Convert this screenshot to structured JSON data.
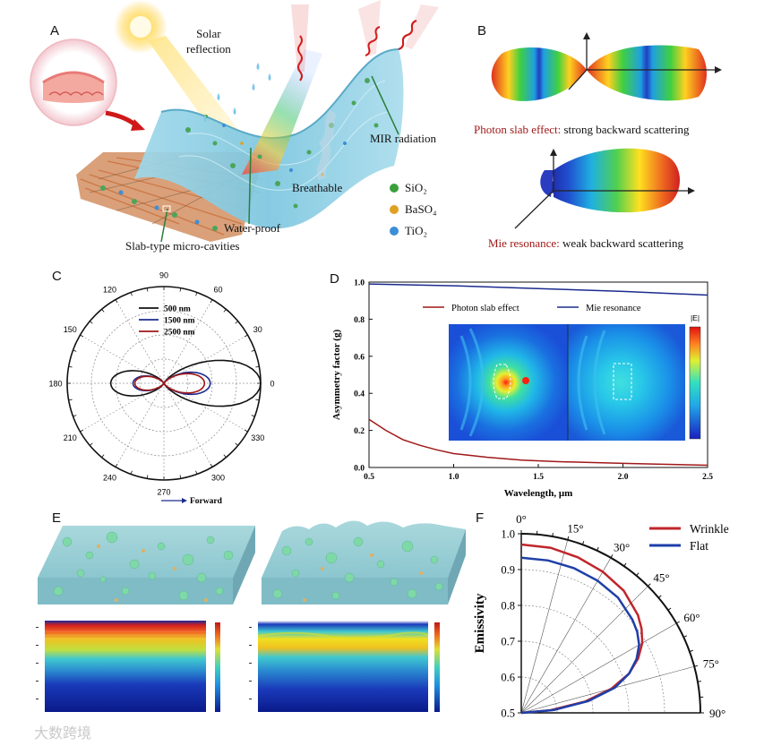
{
  "panels": {
    "a": "A",
    "b": "B",
    "c": "C",
    "d": "D",
    "e": "E",
    "f": "F"
  },
  "panel_a": {
    "solar": [
      "Solar",
      "reflection"
    ],
    "mir": "MIR radiation",
    "breathable": "Breathable",
    "waterproof": "Water-proof",
    "slab": "Slab-type micro-cavities",
    "legend": [
      {
        "label": "SiO₂",
        "color": "#3aa03a"
      },
      {
        "label": "BaSO₄",
        "color": "#e0a020"
      },
      {
        "label": "TiO₂",
        "color": "#3b8fd6"
      }
    ]
  },
  "panel_b": {
    "photon_name": "Photon slab effect:",
    "photon_desc": " strong backward scattering",
    "mie_name": "Mie resonance:",
    "mie_desc": " weak backward scattering"
  },
  "chart_data": [
    {
      "id": "C",
      "type": "polar",
      "angle_ticks": [
        "0",
        "30",
        "60",
        "90",
        "120",
        "150",
        "180",
        "210",
        "240",
        "270",
        "300",
        "330"
      ],
      "series": [
        {
          "name": "500   nm",
          "color": "#111111",
          "forward_lobe": 1.0,
          "backward_lobe": 0.55
        },
        {
          "name": "1500 nm",
          "color": "#1c2b8f",
          "forward_lobe": 0.48,
          "backward_lobe": 0.32
        },
        {
          "name": "2500 nm",
          "color": "#a01818",
          "forward_lobe": 0.42,
          "backward_lobe": 0.3
        }
      ],
      "annotation": "Forward"
    },
    {
      "id": "D",
      "type": "line",
      "xlabel": "Wavelength, μm",
      "ylabel": "Asymmetry factor (g)",
      "xlim": [
        0.5,
        2.5
      ],
      "ylim": [
        0.0,
        1.0
      ],
      "xticks": [
        "0.5",
        "1.0",
        "1.5",
        "2.0",
        "2.5"
      ],
      "yticks": [
        "0.0",
        "0.2",
        "0.4",
        "0.6",
        "0.8",
        "1.0"
      ],
      "inset_label": "|E|",
      "series": [
        {
          "name": "Photon slab effect",
          "color": "#a01818",
          "x": [
            0.5,
            0.6,
            0.7,
            0.8,
            0.9,
            1.0,
            1.2,
            1.4,
            1.6,
            1.8,
            2.0,
            2.2,
            2.5
          ],
          "y": [
            0.26,
            0.2,
            0.15,
            0.12,
            0.095,
            0.075,
            0.055,
            0.04,
            0.032,
            0.027,
            0.022,
            0.018,
            0.012
          ]
        },
        {
          "name": "Mie resonance",
          "color": "#1c2b8f",
          "x": [
            0.5,
            1.0,
            1.5,
            2.0,
            2.5
          ],
          "y": [
            0.99,
            0.98,
            0.965,
            0.95,
            0.93
          ]
        }
      ]
    },
    {
      "id": "F",
      "type": "polar",
      "ylabel": "Emissivity",
      "rlim": [
        0.5,
        1.0
      ],
      "rticks": [
        "0.5",
        "0.6",
        "0.7",
        "0.8",
        "0.9",
        "1.0"
      ],
      "angle_ticks": [
        "0°",
        "15°",
        "30°",
        "45°",
        "60°",
        "75°",
        "90°"
      ],
      "series": [
        {
          "name": "Wrinkle",
          "color": "#c0262b",
          "angles": [
            0,
            10,
            20,
            30,
            40,
            50,
            55,
            60,
            65,
            70,
            75,
            80,
            85,
            90
          ],
          "r": [
            0.97,
            0.968,
            0.962,
            0.955,
            0.945,
            0.925,
            0.91,
            0.89,
            0.86,
            0.82,
            0.76,
            0.68,
            0.58,
            0.5
          ]
        },
        {
          "name": "Flat",
          "color": "#1e3fa8",
          "angles": [
            0,
            10,
            20,
            30,
            40,
            50,
            55,
            60,
            65,
            70,
            75,
            80,
            85,
            90
          ],
          "r": [
            0.933,
            0.932,
            0.93,
            0.926,
            0.92,
            0.905,
            0.895,
            0.88,
            0.855,
            0.82,
            0.77,
            0.69,
            0.59,
            0.5
          ]
        }
      ]
    }
  ],
  "colors": {
    "red": "#a01818",
    "navy": "#1c2b8f",
    "cyan": "#8fd3e0"
  },
  "watermark": "大数跨境"
}
